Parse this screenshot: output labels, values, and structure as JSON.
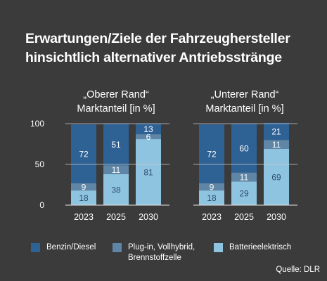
{
  "title_lines": [
    "Erwartungen/Ziele der Fahrzeughersteller",
    "hinsichtlich alternativer Antriebsstränge"
  ],
  "source": "Quelle: DLR",
  "colors": {
    "background": "#3b3b3b",
    "benzin": "#2e6194",
    "plugin": "#5f86a6",
    "batterie": "#8fc4e0"
  },
  "chart_data": [
    {
      "type": "bar",
      "stacked": true,
      "title_lines": [
        "„Oberer Rand“",
        "Marktanteil [in %]"
      ],
      "categories": [
        "2023",
        "2025",
        "2030"
      ],
      "ylim": [
        0,
        100
      ],
      "yticks": [
        "0",
        "50",
        "100"
      ],
      "series": [
        {
          "name": "Batterieelektrisch",
          "values": [
            18,
            38,
            81
          ]
        },
        {
          "name": "Plug-in, Vollhybrid, Brennstoffzelle",
          "values": [
            9,
            11,
            6
          ]
        },
        {
          "name": "Benzin/Diesel",
          "values": [
            72,
            51,
            13
          ]
        }
      ]
    },
    {
      "type": "bar",
      "stacked": true,
      "title_lines": [
        "„Unterer Rand“",
        "Marktanteil [in %]"
      ],
      "categories": [
        "2023",
        "2025",
        "2030"
      ],
      "ylim": [
        0,
        100
      ],
      "series": [
        {
          "name": "Batterieelektrisch",
          "values": [
            18,
            29,
            69
          ]
        },
        {
          "name": "Plug-in, Vollhybrid, Brennstoffzelle",
          "values": [
            9,
            11,
            11
          ]
        },
        {
          "name": "Benzin/Diesel",
          "values": [
            72,
            60,
            21
          ]
        }
      ]
    }
  ],
  "legend": [
    {
      "lines": [
        "Benzin/Diesel"
      ],
      "color_key": "benzin"
    },
    {
      "lines": [
        "Plug-in, Vollhybrid,",
        "Brennstoffzelle"
      ],
      "color_key": "plugin"
    },
    {
      "lines": [
        "Batterieelektrisch"
      ],
      "color_key": "batterie"
    }
  ]
}
